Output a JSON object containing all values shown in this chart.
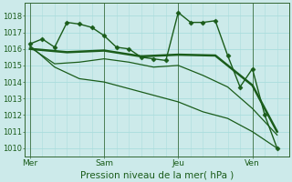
{
  "bg_color": "#cceaea",
  "grid_color": "#aadddd",
  "line_color": "#1a5c1a",
  "xlabel": "Pression niveau de la mer( hPa )",
  "ylim": [
    1009.5,
    1018.8
  ],
  "yticks": [
    1010,
    1011,
    1012,
    1013,
    1014,
    1015,
    1016,
    1017,
    1018
  ],
  "xtick_labels": [
    "Mer",
    "Sam",
    "Jeu",
    "Ven"
  ],
  "xtick_positions": [
    0,
    3,
    6,
    9
  ],
  "xlim": [
    -0.2,
    10.5
  ],
  "vlines": [
    0,
    3,
    6,
    9
  ],
  "series": [
    {
      "x": [
        0,
        0.5,
        1,
        1.5,
        2,
        2.5,
        3,
        3.5,
        4,
        4.5,
        5,
        5.5,
        6,
        6.5,
        7,
        7.5,
        8,
        8.5,
        9,
        9.5,
        10
      ],
      "y": [
        1016.3,
        1016.6,
        1016.1,
        1017.6,
        1017.5,
        1017.3,
        1016.8,
        1016.1,
        1016.0,
        1015.5,
        1015.4,
        1015.3,
        1018.2,
        1017.6,
        1017.6,
        1017.7,
        1015.6,
        1013.7,
        1014.8,
        1012.0,
        1010.0
      ],
      "marker": "D",
      "markersize": 2.5,
      "linewidth": 1.0
    },
    {
      "x": [
        0,
        1.5,
        3,
        4.5,
        6,
        7.5,
        9,
        10
      ],
      "y": [
        1016.0,
        1015.8,
        1015.9,
        1015.55,
        1015.65,
        1015.6,
        1013.8,
        1011.0
      ],
      "marker": null,
      "markersize": 0,
      "linewidth": 1.8
    },
    {
      "x": [
        0,
        1,
        2,
        3,
        4,
        5,
        6,
        7,
        8,
        9,
        10
      ],
      "y": [
        1016.1,
        1015.1,
        1015.2,
        1015.4,
        1015.2,
        1014.9,
        1015.0,
        1014.4,
        1013.7,
        1012.4,
        1010.8
      ],
      "marker": null,
      "markersize": 0,
      "linewidth": 0.9
    },
    {
      "x": [
        0,
        1,
        2,
        3,
        4,
        5,
        6,
        7,
        8,
        9,
        10
      ],
      "y": [
        1016.2,
        1014.9,
        1014.2,
        1014.0,
        1013.6,
        1013.2,
        1012.8,
        1012.2,
        1011.8,
        1011.0,
        1010.0
      ],
      "marker": null,
      "markersize": 0,
      "linewidth": 0.9
    }
  ]
}
